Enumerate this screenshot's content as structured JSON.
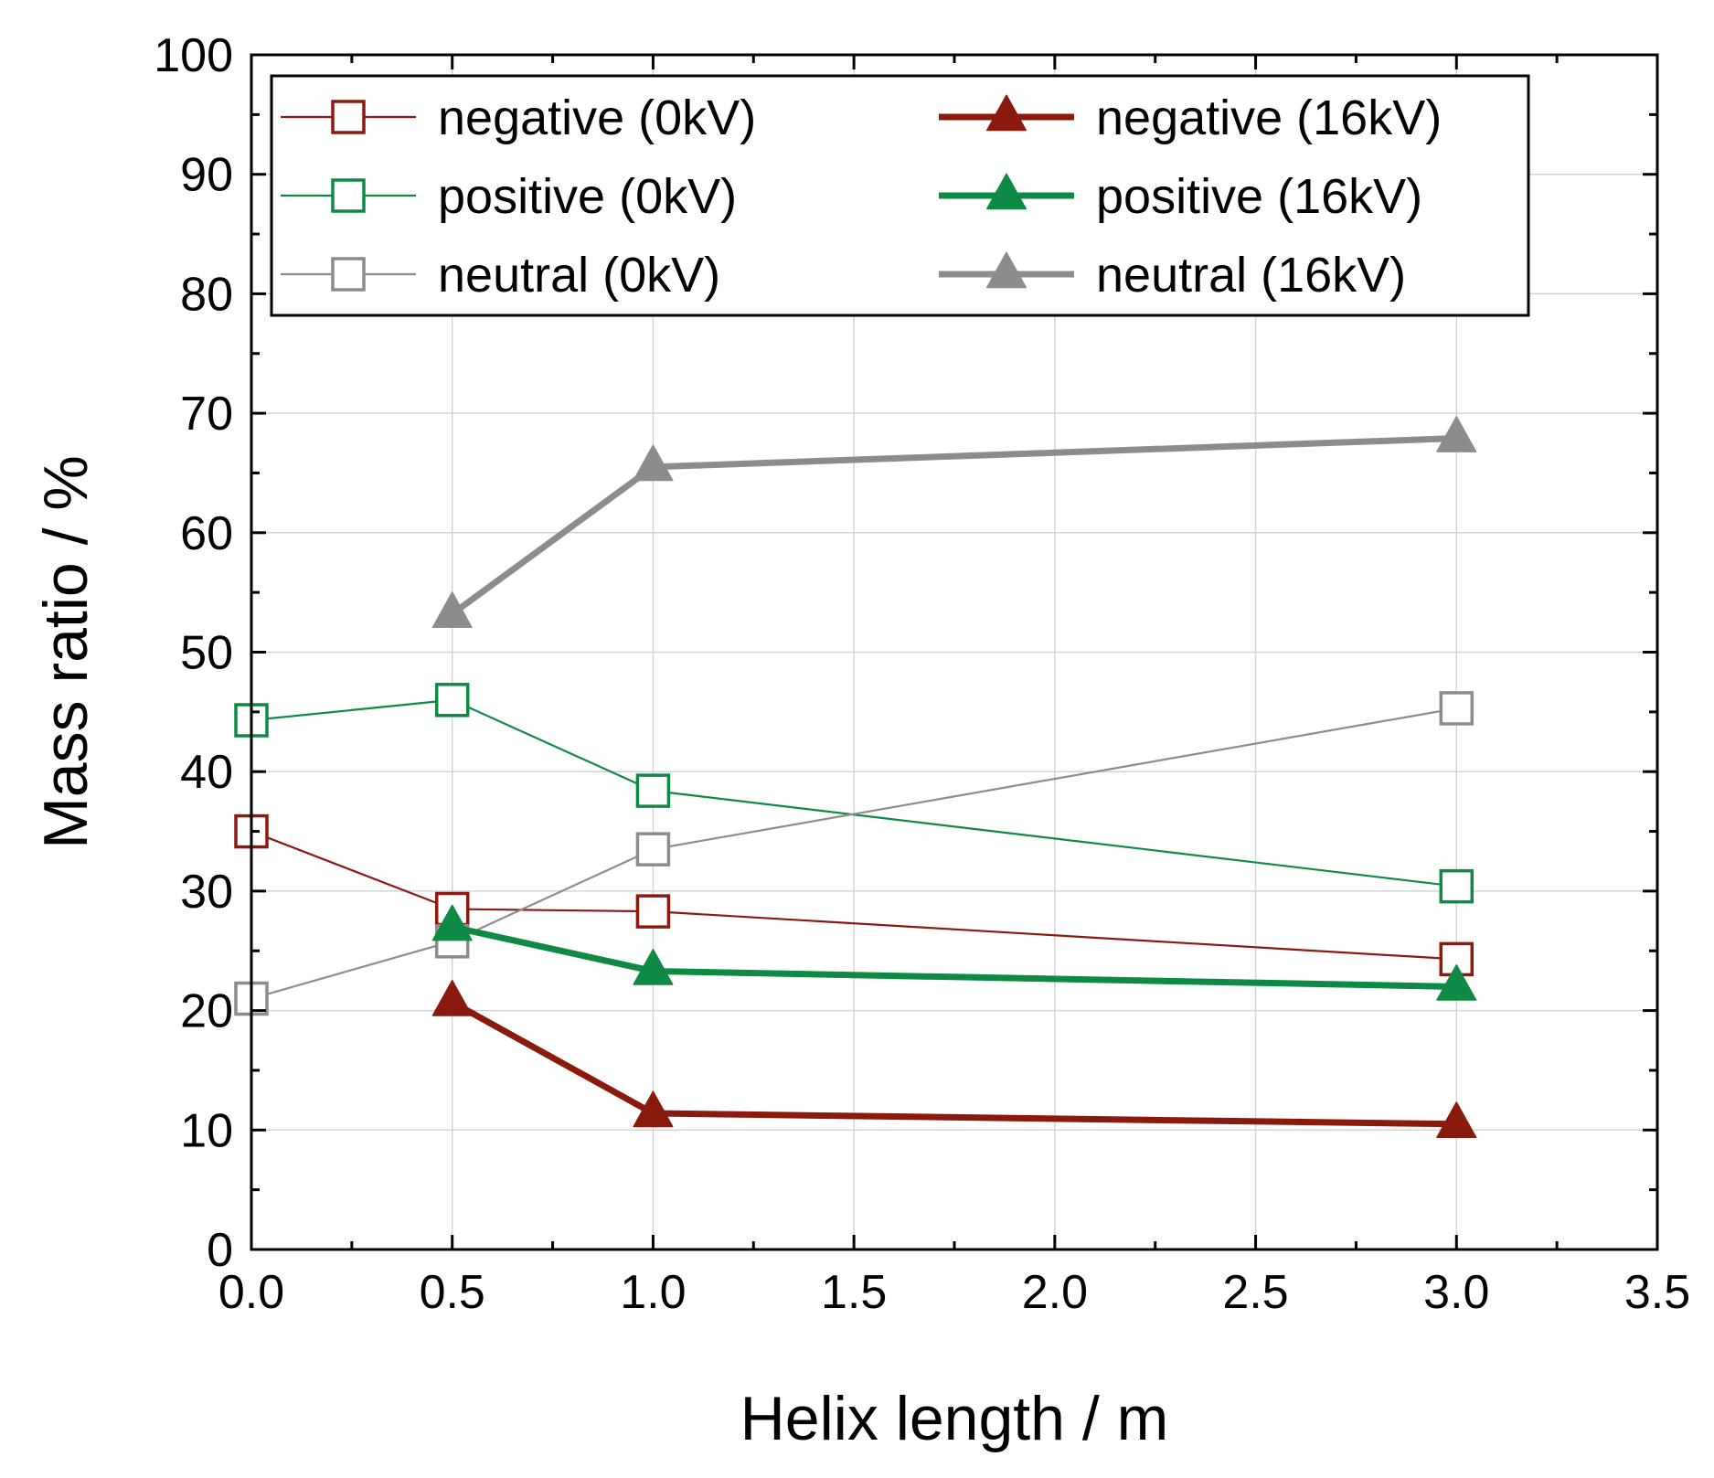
{
  "chart_data": {
    "type": "line",
    "title": "",
    "xlabel": "Helix length / m",
    "ylabel": "Mass ratio / %",
    "xlim": [
      0,
      3.5
    ],
    "ylim": [
      0,
      100
    ],
    "x_ticks": [
      "0.0",
      "0.5",
      "1.0",
      "1.5",
      "2.0",
      "2.5",
      "3.0",
      "3.5"
    ],
    "y_ticks": [
      "0",
      "10",
      "20",
      "30",
      "40",
      "50",
      "60",
      "70",
      "80",
      "90",
      "100"
    ],
    "grid": true,
    "legend_position": "top",
    "series": [
      {
        "name": "negative (0kV)",
        "color": "#8b1a0e",
        "marker": "open-square",
        "line": "thin",
        "points": [
          [
            0.0,
            35
          ],
          [
            0.5,
            28.5
          ],
          [
            1.0,
            28.3
          ],
          [
            3.0,
            24.3
          ]
        ]
      },
      {
        "name": "positive (0kV)",
        "color": "#0e8a45",
        "marker": "open-square",
        "line": "thin",
        "points": [
          [
            0.0,
            44.3
          ],
          [
            0.5,
            46
          ],
          [
            1.0,
            38.4
          ],
          [
            3.0,
            30.4
          ]
        ]
      },
      {
        "name": "neutral (0kV)",
        "color": "#8c8c8c",
        "marker": "open-square",
        "line": "thin",
        "points": [
          [
            0.0,
            21
          ],
          [
            0.5,
            25.8
          ],
          [
            1.0,
            33.5
          ],
          [
            3.0,
            45.3
          ]
        ]
      },
      {
        "name": "negative (16kV)",
        "color": "#8b1a0e",
        "marker": "filled-triangle",
        "line": "thick",
        "points": [
          [
            0.5,
            20.7
          ],
          [
            1.0,
            11.4
          ],
          [
            3.0,
            10.5
          ]
        ]
      },
      {
        "name": "positive (16kV)",
        "color": "#0e8a45",
        "marker": "filled-triangle",
        "line": "thick",
        "points": [
          [
            0.5,
            27
          ],
          [
            1.0,
            23.3
          ],
          [
            3.0,
            22
          ]
        ]
      },
      {
        "name": "neutral (16kV)",
        "color": "#8c8c8c",
        "marker": "filled-triangle",
        "line": "thick",
        "points": [
          [
            0.5,
            53.2
          ],
          [
            1.0,
            65.5
          ],
          [
            3.0,
            67.9
          ]
        ]
      }
    ]
  }
}
